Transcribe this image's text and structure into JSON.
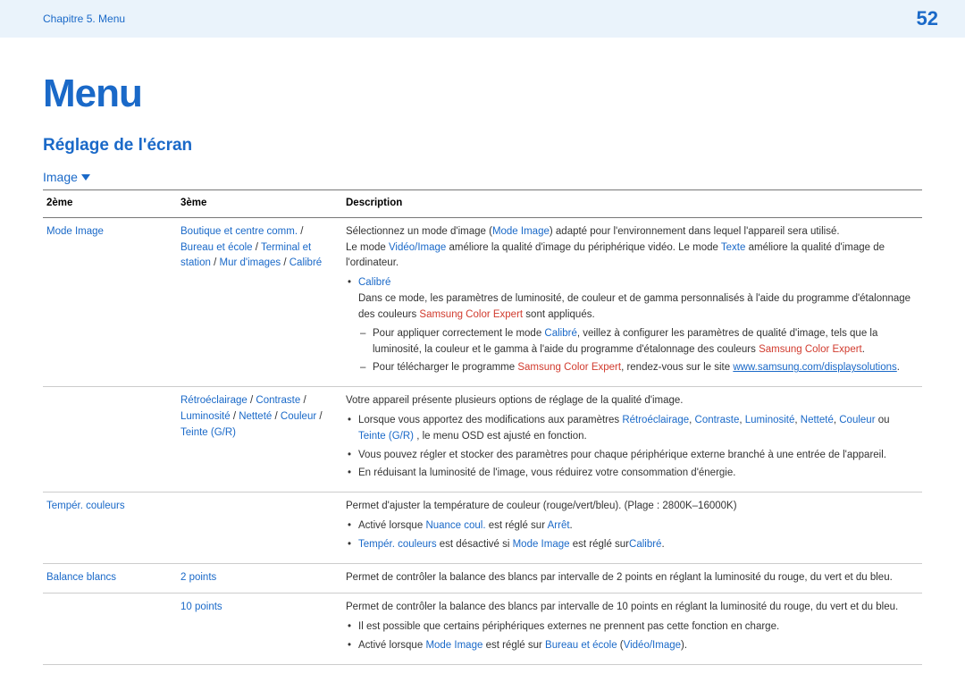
{
  "header": {
    "chapter": "Chapitre 5. Menu",
    "page": "52"
  },
  "title": "Menu",
  "section": "Réglage de l'écran",
  "subLabel": "Image",
  "columns": {
    "c1": "2ème",
    "c2": "3ème",
    "c3": "Description"
  },
  "row1": {
    "col1": "Mode Image",
    "col2": {
      "a": "Boutique et centre comm.",
      "sep1": " / ",
      "b": "Bureau et école",
      "sep2": " / ",
      "c": "Terminal et station",
      "sep3": " / ",
      "d": "Mur d'images",
      "sep4": " / ",
      "e": "Calibré"
    },
    "desc": {
      "p1a": "Sélectionnez un mode d'image (",
      "p1b": "Mode Image",
      "p1c": ") adapté pour l'environnement dans lequel l'appareil sera utilisé.",
      "p2a": "Le mode ",
      "p2b": "Vidéo/Image",
      "p2c": " améliore la qualité d'image du périphérique vidéo. Le mode ",
      "p2d": "Texte",
      "p2e": " améliore la qualité d'image de l'ordinateur.",
      "bul1": "Calibré",
      "bul1text": "Dans ce mode, les paramètres de luminosité, de couleur et de gamma personnalisés à l'aide du programme d'étalonnage des couleurs ",
      "bul1red": "Samsung Color Expert",
      "bul1tail": " sont appliqués.",
      "d1a": "Pour appliquer correctement le mode ",
      "d1b": "Calibré",
      "d1c": ", veillez à configurer les paramètres de qualité d'image, tels que la luminosité, la couleur et le gamma à l'aide du programme d'étalonnage des couleurs ",
      "d1d": "Samsung Color Expert",
      "d1e": ".",
      "d2a": "Pour télécharger le programme ",
      "d2b": "Samsung Color Expert",
      "d2c": ", rendez-vous sur le site ",
      "d2d": "www.samsung.com/displaysolutions",
      "d2e": "."
    }
  },
  "row2": {
    "col2": {
      "a": "Rétroéclairage",
      "s1": " / ",
      "b": "Contraste",
      "s2": " / ",
      "c": "Luminosité",
      "s3": " / ",
      "d": "Netteté",
      "s4": " / ",
      "e": "Couleur",
      "s5": " / ",
      "f": "Teinte (G/R)"
    },
    "desc": {
      "p1": "Votre appareil présente plusieurs options de réglage de la qualité d'image.",
      "b1a": "Lorsque vous apportez des modifications aux paramètres ",
      "b1_r": "Rétroéclairage",
      "b1s1": ", ",
      "b1_c": "Contraste",
      "b1s2": ", ",
      "b1_l": "Luminosité",
      "b1s3": ", ",
      "b1_n": "Netteté",
      "b1s4": ", ",
      "b1_co": "Couleur",
      "b1s5": " ou ",
      "b1_t": "Teinte (G/R)",
      "b1tail": ", le menu OSD est ajusté en fonction.",
      "b2": "Vous pouvez régler et stocker des paramètres pour chaque périphérique externe branché à une entrée de l'appareil.",
      "b3": "En réduisant la luminosité de l'image, vous réduirez votre consommation d'énergie."
    }
  },
  "row3": {
    "col1": "Tempér. couleurs",
    "desc": {
      "p1": "Permet d'ajuster la température de couleur (rouge/vert/bleu). (Plage : 2800K–16000K)",
      "b1a": "Activé lorsque ",
      "b1b": "Nuance coul.",
      "b1c": " est réglé sur ",
      "b1d": "Arrêt",
      "b1e": ".",
      "b2a": "Tempér. couleurs",
      "b2b": " est désactivé si ",
      "b2c": "Mode Image",
      "b2d": " est réglé sur",
      "b2e": "Calibré",
      "b2f": "."
    }
  },
  "row4": {
    "col1": "Balance blancs",
    "col2": "2 points",
    "desc": "Permet de contrôler la balance des blancs par intervalle de 2 points en réglant la luminosité du rouge, du vert et du bleu."
  },
  "row5": {
    "col2": "10 points",
    "desc": {
      "p1": "Permet de contrôler la balance des blancs par intervalle de 10 points en réglant la luminosité du rouge, du vert et du bleu.",
      "b1": "Il est possible que certains périphériques externes ne prennent pas cette fonction en charge.",
      "b2a": "Activé lorsque ",
      "b2b": "Mode Image",
      "b2c": " est réglé sur ",
      "b2d": "Bureau et école",
      "b2e": " (",
      "b2f": "Vidéo/Image",
      "b2g": ")."
    }
  }
}
